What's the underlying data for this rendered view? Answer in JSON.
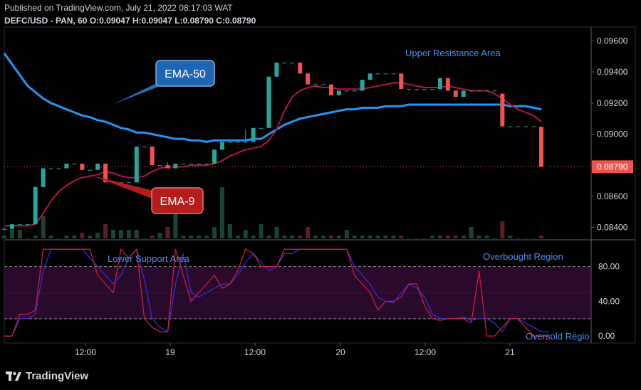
{
  "header": {
    "published": "Published on TradingView.com, July 21, 2022 08:17:03 WAT",
    "symbol_line": "DEFC/USD - PAN, 60",
    "ohlc": [
      {
        "k": "O:",
        "v": "0.09047"
      },
      {
        "k": "H:",
        "v": "0.09047"
      },
      {
        "k": "L:",
        "v": "0.08790"
      },
      {
        "k": "C:",
        "v": "0.08790"
      }
    ]
  },
  "brand": "TradingView",
  "chart_data": [
    {
      "type": "candlestick",
      "title": "DEFC/USD - PAN, 60",
      "ylim": [
        0.0832,
        0.0968
      ],
      "y_ticks": [
        "0.08400",
        "0.08600",
        "0.08800",
        "0.09000",
        "0.09200",
        "0.09400",
        "0.09600"
      ],
      "x_ticks": [
        "12:00",
        "19",
        "12:00",
        "20",
        "12:00",
        "21"
      ],
      "last_price": "0.08790",
      "annotations": {
        "ema50": "EMA-50",
        "ema9": "EMA-9",
        "resistance": "Upper Resistance Area"
      },
      "candles": [
        {
          "o": 0.0839,
          "h": 0.084,
          "l": 0.0838,
          "c": 0.0839
        },
        {
          "o": 0.0839,
          "h": 0.0842,
          "l": 0.0838,
          "c": 0.0842
        },
        {
          "o": 0.0842,
          "h": 0.0842,
          "l": 0.0842,
          "c": 0.0842
        },
        {
          "o": 0.0842,
          "h": 0.0842,
          "l": 0.0842,
          "c": 0.0842
        },
        {
          "o": 0.0842,
          "h": 0.0866,
          "l": 0.0842,
          "c": 0.0866
        },
        {
          "o": 0.0866,
          "h": 0.0878,
          "l": 0.0866,
          "c": 0.0878
        },
        {
          "o": 0.0878,
          "h": 0.0878,
          "l": 0.0878,
          "c": 0.0878
        },
        {
          "o": 0.0878,
          "h": 0.0878,
          "l": 0.0878,
          "c": 0.0878
        },
        {
          "o": 0.0878,
          "h": 0.0881,
          "l": 0.0878,
          "c": 0.0881
        },
        {
          "o": 0.0881,
          "h": 0.0881,
          "l": 0.0881,
          "c": 0.0881
        },
        {
          "o": 0.0881,
          "h": 0.0881,
          "l": 0.0877,
          "c": 0.0877
        },
        {
          "o": 0.0877,
          "h": 0.0877,
          "l": 0.0877,
          "c": 0.0877
        },
        {
          "o": 0.0877,
          "h": 0.0881,
          "l": 0.0877,
          "c": 0.0881
        },
        {
          "o": 0.0881,
          "h": 0.0881,
          "l": 0.0869,
          "c": 0.0869
        },
        {
          "o": 0.0869,
          "h": 0.0869,
          "l": 0.0869,
          "c": 0.0869
        },
        {
          "o": 0.0869,
          "h": 0.0869,
          "l": 0.0869,
          "c": 0.0869
        },
        {
          "o": 0.0869,
          "h": 0.0869,
          "l": 0.0869,
          "c": 0.0869
        },
        {
          "o": 0.0869,
          "h": 0.0892,
          "l": 0.0869,
          "c": 0.0892
        },
        {
          "o": 0.0892,
          "h": 0.0892,
          "l": 0.0892,
          "c": 0.0892
        },
        {
          "o": 0.0892,
          "h": 0.0892,
          "l": 0.088,
          "c": 0.088
        },
        {
          "o": 0.088,
          "h": 0.088,
          "l": 0.088,
          "c": 0.088
        },
        {
          "o": 0.088,
          "h": 0.0882,
          "l": 0.0878,
          "c": 0.0878
        },
        {
          "o": 0.0878,
          "h": 0.0881,
          "l": 0.0878,
          "c": 0.0881
        },
        {
          "o": 0.0881,
          "h": 0.0881,
          "l": 0.0881,
          "c": 0.0881
        },
        {
          "o": 0.0881,
          "h": 0.0881,
          "l": 0.0881,
          "c": 0.0881
        },
        {
          "o": 0.0881,
          "h": 0.0881,
          "l": 0.0881,
          "c": 0.0881
        },
        {
          "o": 0.0881,
          "h": 0.0881,
          "l": 0.0881,
          "c": 0.0881
        },
        {
          "o": 0.0881,
          "h": 0.089,
          "l": 0.0881,
          "c": 0.089
        },
        {
          "o": 0.089,
          "h": 0.0895,
          "l": 0.089,
          "c": 0.0895
        },
        {
          "o": 0.0895,
          "h": 0.0895,
          "l": 0.0895,
          "c": 0.0895
        },
        {
          "o": 0.0895,
          "h": 0.0895,
          "l": 0.0895,
          "c": 0.0895
        },
        {
          "o": 0.0895,
          "h": 0.0903,
          "l": 0.0895,
          "c": 0.0895
        },
        {
          "o": 0.0895,
          "h": 0.0904,
          "l": 0.0895,
          "c": 0.0904
        },
        {
          "o": 0.0904,
          "h": 0.0904,
          "l": 0.0904,
          "c": 0.0904
        },
        {
          "o": 0.0904,
          "h": 0.0937,
          "l": 0.0904,
          "c": 0.0937
        },
        {
          "o": 0.0937,
          "h": 0.0946,
          "l": 0.0937,
          "c": 0.0946
        },
        {
          "o": 0.0946,
          "h": 0.0946,
          "l": 0.0946,
          "c": 0.0946
        },
        {
          "o": 0.0946,
          "h": 0.0946,
          "l": 0.0946,
          "c": 0.0946
        },
        {
          "o": 0.0946,
          "h": 0.0946,
          "l": 0.0939,
          "c": 0.0939
        },
        {
          "o": 0.0939,
          "h": 0.0939,
          "l": 0.0932,
          "c": 0.0932
        },
        {
          "o": 0.0932,
          "h": 0.0932,
          "l": 0.0932,
          "c": 0.0932
        },
        {
          "o": 0.0932,
          "h": 0.0932,
          "l": 0.0932,
          "c": 0.0932
        },
        {
          "o": 0.0932,
          "h": 0.0932,
          "l": 0.0925,
          "c": 0.0925
        },
        {
          "o": 0.0925,
          "h": 0.0928,
          "l": 0.0925,
          "c": 0.0928
        },
        {
          "o": 0.0928,
          "h": 0.0928,
          "l": 0.0928,
          "c": 0.0928
        },
        {
          "o": 0.0928,
          "h": 0.0928,
          "l": 0.0928,
          "c": 0.0928
        },
        {
          "o": 0.0928,
          "h": 0.0935,
          "l": 0.0928,
          "c": 0.0935
        },
        {
          "o": 0.0935,
          "h": 0.0939,
          "l": 0.0935,
          "c": 0.0939
        },
        {
          "o": 0.0939,
          "h": 0.0939,
          "l": 0.0939,
          "c": 0.0939
        },
        {
          "o": 0.0939,
          "h": 0.0939,
          "l": 0.0939,
          "c": 0.0939
        },
        {
          "o": 0.0939,
          "h": 0.0939,
          "l": 0.0939,
          "c": 0.0939
        },
        {
          "o": 0.0939,
          "h": 0.0939,
          "l": 0.0929,
          "c": 0.0929
        },
        {
          "o": 0.0929,
          "h": 0.0929,
          "l": 0.0929,
          "c": 0.0929
        },
        {
          "o": 0.0929,
          "h": 0.0929,
          "l": 0.0929,
          "c": 0.0929
        },
        {
          "o": 0.0929,
          "h": 0.0929,
          "l": 0.0929,
          "c": 0.0929
        },
        {
          "o": 0.0929,
          "h": 0.0929,
          "l": 0.0929,
          "c": 0.0929
        },
        {
          "o": 0.0929,
          "h": 0.0936,
          "l": 0.0929,
          "c": 0.0936
        },
        {
          "o": 0.0936,
          "h": 0.0936,
          "l": 0.0928,
          "c": 0.0928
        },
        {
          "o": 0.0928,
          "h": 0.0928,
          "l": 0.0924,
          "c": 0.0924
        },
        {
          "o": 0.0924,
          "h": 0.0928,
          "l": 0.0924,
          "c": 0.0928
        },
        {
          "o": 0.0928,
          "h": 0.0928,
          "l": 0.0928,
          "c": 0.0928
        },
        {
          "o": 0.0928,
          "h": 0.0928,
          "l": 0.0928,
          "c": 0.0928
        },
        {
          "o": 0.0928,
          "h": 0.0928,
          "l": 0.0928,
          "c": 0.0928
        },
        {
          "o": 0.0928,
          "h": 0.0928,
          "l": 0.0928,
          "c": 0.0928
        },
        {
          "o": 0.0926,
          "h": 0.0926,
          "l": 0.0905,
          "c": 0.0905
        },
        {
          "o": 0.0905,
          "h": 0.0905,
          "l": 0.0905,
          "c": 0.0905
        },
        {
          "o": 0.0905,
          "h": 0.0905,
          "l": 0.0905,
          "c": 0.0905
        },
        {
          "o": 0.0905,
          "h": 0.0905,
          "l": 0.0905,
          "c": 0.0905
        },
        {
          "o": 0.0905,
          "h": 0.0905,
          "l": 0.0905,
          "c": 0.0905
        },
        {
          "o": 0.09047,
          "h": 0.09047,
          "l": 0.0879,
          "c": 0.0879
        }
      ],
      "volume": [
        1,
        3,
        3,
        0,
        1,
        8,
        1,
        0,
        1,
        1,
        2,
        1,
        2,
        5,
        3,
        3,
        3,
        3,
        0,
        1,
        2,
        4,
        9,
        1,
        1,
        1,
        1,
        4,
        18,
        5,
        1,
        3,
        1,
        5,
        1,
        4,
        1,
        1,
        1,
        4,
        1,
        1,
        1,
        1,
        3,
        1,
        1,
        1,
        1,
        1,
        1,
        1,
        0,
        0,
        0,
        1,
        1,
        1,
        1,
        1,
        4,
        1,
        1,
        0,
        6,
        1,
        0,
        0,
        0,
        1
      ],
      "ema50": [
        0.0952,
        0.0945,
        0.0938,
        0.0931,
        0.0927,
        0.0923,
        0.092,
        0.0918,
        0.0916,
        0.0914,
        0.0912,
        0.0911,
        0.0909,
        0.0908,
        0.0906,
        0.0904,
        0.0903,
        0.0901,
        0.0901,
        0.09,
        0.0899,
        0.0898,
        0.0897,
        0.0897,
        0.0896,
        0.0896,
        0.0895,
        0.0896,
        0.0896,
        0.0896,
        0.0896,
        0.0896,
        0.0897,
        0.0897,
        0.09,
        0.0903,
        0.0906,
        0.0908,
        0.091,
        0.0911,
        0.0912,
        0.0913,
        0.0914,
        0.0915,
        0.0916,
        0.0916,
        0.0917,
        0.0917,
        0.0917,
        0.0918,
        0.0918,
        0.0918,
        0.0919,
        0.0919,
        0.0919,
        0.0919,
        0.0919,
        0.0919,
        0.0919,
        0.0919,
        0.0919,
        0.0919,
        0.0919,
        0.0919,
        0.0919,
        0.0918,
        0.0918,
        0.0918,
        0.0917,
        0.0916
      ],
      "ema9": [
        0.0841,
        0.0841,
        0.0841,
        0.0841,
        0.0842,
        0.0849,
        0.0857,
        0.0863,
        0.0867,
        0.087,
        0.0872,
        0.0873,
        0.0874,
        0.0876,
        0.0875,
        0.0873,
        0.0872,
        0.0872,
        0.0873,
        0.0876,
        0.0878,
        0.0879,
        0.0879,
        0.0879,
        0.088,
        0.088,
        0.088,
        0.0881,
        0.0883,
        0.0886,
        0.0888,
        0.089,
        0.0891,
        0.0892,
        0.0896,
        0.0903,
        0.0915,
        0.0924,
        0.0928,
        0.093,
        0.0931,
        0.093,
        0.093,
        0.0929,
        0.0929,
        0.0929,
        0.0929,
        0.093,
        0.0931,
        0.0932,
        0.0933,
        0.0933,
        0.0932,
        0.0931,
        0.093,
        0.093,
        0.093,
        0.0931,
        0.093,
        0.0929,
        0.0928,
        0.0928,
        0.0928,
        0.0926,
        0.0923,
        0.0919,
        0.0916,
        0.0914,
        0.0912,
        0.0908
      ],
      "colors": {
        "up": "#26a69a",
        "down": "#ef5350",
        "ema50": "#2196f3",
        "ema9": "#b2154c",
        "vol_up": "#1b4332",
        "vol_down": "#5c1e26",
        "background": "#000000"
      }
    },
    {
      "type": "line",
      "title": "Stochastic",
      "ylim": [
        -8,
        110
      ],
      "y_ticks": [
        "0.00",
        "40.00",
        "80.00"
      ],
      "levels": [
        20,
        80
      ],
      "labels": {
        "support": "Lower Support Area",
        "overbought": "Overbought Region",
        "oversold": "Oversold Regio"
      },
      "series": [
        {
          "values": [
            0,
            0,
            20,
            20,
            25,
            75,
            100,
            100,
            100,
            100,
            100,
            90,
            80,
            70,
            60,
            70,
            90,
            100,
            65,
            20,
            10,
            5,
            60,
            95,
            50,
            45,
            50,
            55,
            60,
            60,
            70,
            85,
            95,
            85,
            75,
            80,
            95,
            95,
            100,
            100,
            100,
            100,
            100,
            100,
            100,
            80,
            70,
            60,
            45,
            40,
            38,
            50,
            60,
            55,
            45,
            25,
            20,
            20,
            20,
            22,
            18,
            20,
            20,
            15,
            5,
            20,
            20,
            15,
            10,
            5,
            5
          ]
        },
        {
          "values": [
            0,
            0,
            25,
            25,
            30,
            100,
            100,
            100,
            100,
            100,
            100,
            100,
            70,
            60,
            50,
            100,
            90,
            100,
            20,
            10,
            5,
            5,
            100,
            70,
            40,
            50,
            60,
            70,
            55,
            60,
            75,
            100,
            95,
            80,
            80,
            80,
            100,
            100,
            100,
            100,
            100,
            100,
            100,
            100,
            100,
            70,
            60,
            50,
            30,
            40,
            40,
            45,
            60,
            60,
            35,
            20,
            18,
            20,
            20,
            20,
            15,
            75,
            0,
            0,
            10,
            20,
            20,
            10,
            0,
            0,
            0
          ]
        }
      ],
      "colors": {
        "k": "#3b2bd6",
        "d": "#cc1e3c",
        "band": "#2a0a2c"
      }
    }
  ]
}
